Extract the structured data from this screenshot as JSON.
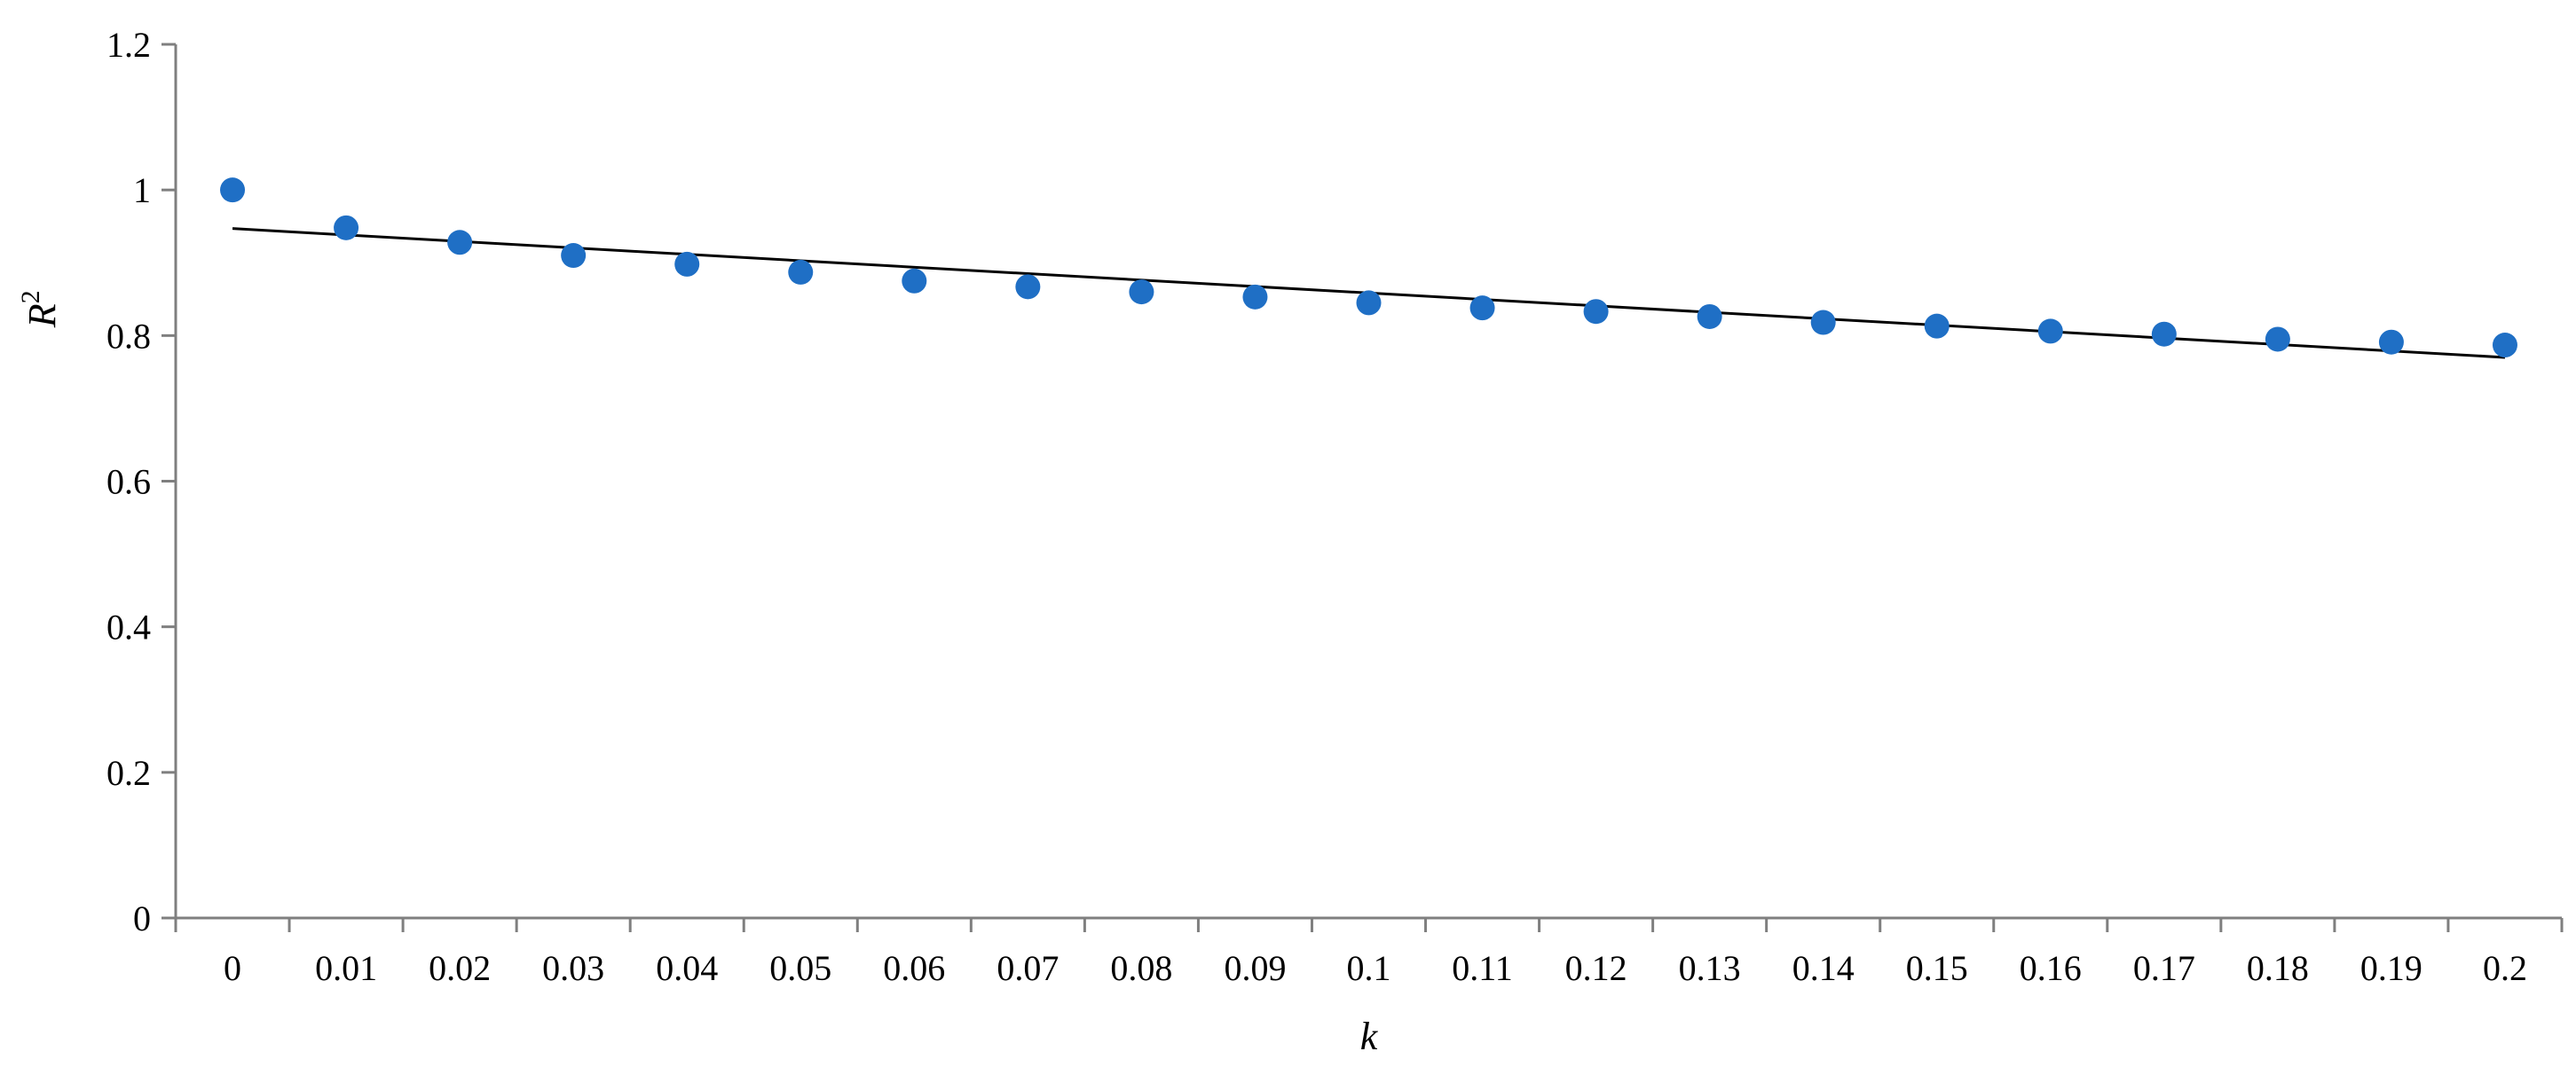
{
  "chart_data": {
    "type": "scatter",
    "title": "",
    "xlabel": "k",
    "ylabel": "R",
    "ylabel_superscript": "2",
    "categories": [
      "0",
      "0.01",
      "0.02",
      "0.03",
      "0.04",
      "0.05",
      "0.06",
      "0.07",
      "0.08",
      "0.09",
      "0.1",
      "0.11",
      "0.12",
      "0.13",
      "0.14",
      "0.15",
      "0.16",
      "0.17",
      "0.18",
      "0.19",
      "0.2"
    ],
    "y_ticks": [
      "0",
      "0.2",
      "0.4",
      "0.6",
      "0.8",
      "1",
      "1.2"
    ],
    "ylim": [
      0,
      1.2
    ],
    "grid": false,
    "legend": "none",
    "series": [
      {
        "values": [
          1.0,
          0.948,
          0.928,
          0.91,
          0.898,
          0.887,
          0.875,
          0.867,
          0.86,
          0.853,
          0.845,
          0.838,
          0.833,
          0.826,
          0.818,
          0.813,
          0.806,
          0.802,
          0.795,
          0.791,
          0.787
        ],
        "color": "#1f6fc5"
      }
    ],
    "trendline": {
      "type": "linear",
      "y_start": 0.947,
      "y_end": 0.77,
      "color": "#000000"
    }
  }
}
